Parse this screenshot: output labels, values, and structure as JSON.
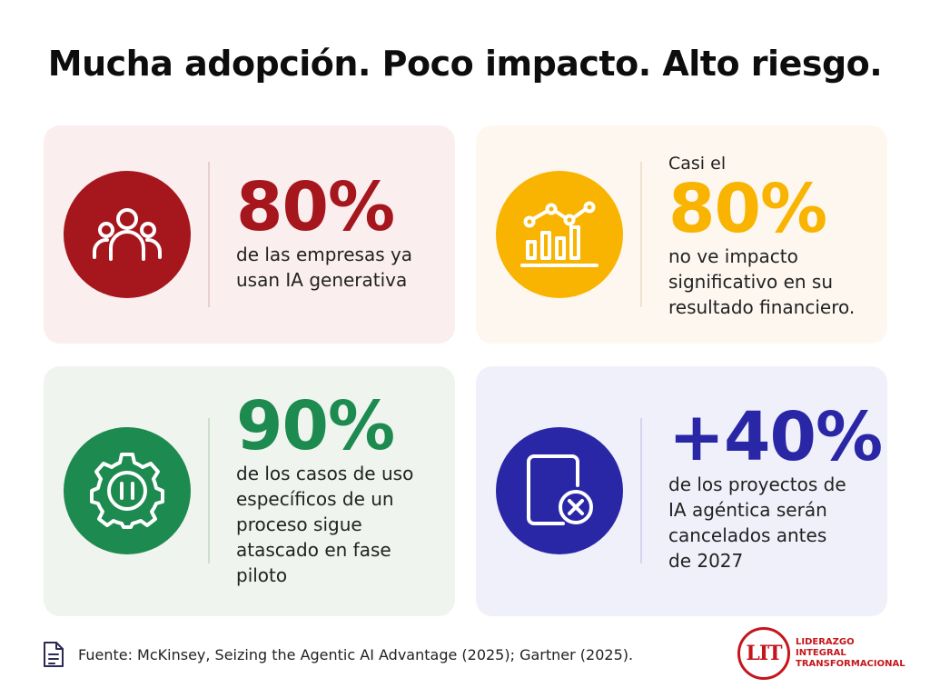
{
  "title": "Mucha adopción. Poco impacto. Alto riesgo.",
  "cards": [
    {
      "icon": "people-icon",
      "color": "#a5161d",
      "pre": "",
      "big": "80%",
      "desc_lines": [
        "de las empresas ya",
        "usan IA generativa"
      ]
    },
    {
      "icon": "chart-icon",
      "color": "#f8b400",
      "pre": "Casi el",
      "big": "80%",
      "desc_lines": [
        "no ve impacto",
        "significativo en su",
        "resultado financiero."
      ]
    },
    {
      "icon": "gear-pause-icon",
      "color": "#1d8a4f",
      "pre": "",
      "big": "90%",
      "desc_lines": [
        "de los casos de uso",
        "específicos de un",
        "proceso sigue",
        "atascado en fase",
        "piloto"
      ]
    },
    {
      "icon": "cancel-document-icon",
      "color": "#2a27a6",
      "pre": "",
      "big": "+40%",
      "desc_lines": [
        "de los proyectos de",
        "IA agéntica serán",
        "cancelados antes",
        "de 2027"
      ]
    }
  ],
  "footer": {
    "icon": "document-icon",
    "source": "Fuente: McKinsey, Seizing the Agentic AI Advantage (2025); Gartner (2025)."
  },
  "logo": {
    "mark": "LIT",
    "lines": [
      "LIDERAZGO",
      "INTEGRAL",
      "TRANSFORMACIONAL"
    ],
    "color": "#c4161c"
  }
}
